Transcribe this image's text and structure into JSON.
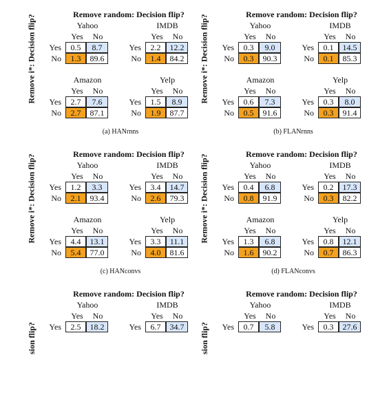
{
  "colors": {
    "tp_fill": "#ffffff",
    "fn_fill": "#d7e6fa",
    "fp_fill": "#f3a11f",
    "tn_fill": "#ffffff"
  },
  "panels": [
    {
      "ylabel": "Remove i*: Decision flip?",
      "title": "Remove random: Decision flip?",
      "caption": "(a) HANrnns",
      "matrices": [
        {
          "dataset": "Yahoo",
          "col_yes": "Yes",
          "col_no": "No",
          "row_yes": "Yes",
          "row_no": "No",
          "values": [
            "0.5",
            "8.7",
            "1.3",
            "89.6"
          ]
        },
        {
          "dataset": "IMDB",
          "col_yes": "Yes",
          "col_no": "No",
          "row_yes": "Yes",
          "row_no": "No",
          "values": [
            "2.2",
            "12.2",
            "1.4",
            "84.2"
          ]
        },
        {
          "dataset": "Amazon",
          "col_yes": "Yes",
          "col_no": "No",
          "row_yes": "Yes",
          "row_no": "No",
          "values": [
            "2.7",
            "7.6",
            "2.7",
            "87.1"
          ]
        },
        {
          "dataset": "Yelp",
          "col_yes": "Yes",
          "col_no": "No",
          "row_yes": "Yes",
          "row_no": "No",
          "values": [
            "1.5",
            "8.9",
            "1.9",
            "87.7"
          ]
        }
      ]
    },
    {
      "ylabel": "Remove i*: Decision flip?",
      "title": "Remove random: Decision flip?",
      "caption": "(b) FLANrnns",
      "matrices": [
        {
          "dataset": "Yahoo",
          "col_yes": "Yes",
          "col_no": "No",
          "row_yes": "Yes",
          "row_no": "No",
          "values": [
            "0.3",
            "9.0",
            "0.3",
            "90.3"
          ]
        },
        {
          "dataset": "IMDB",
          "col_yes": "Yes",
          "col_no": "No",
          "row_yes": "Yes",
          "row_no": "No",
          "values": [
            "0.1",
            "14.5",
            "0.1",
            "85.3"
          ]
        },
        {
          "dataset": "Amazon",
          "col_yes": "Yes",
          "col_no": "No",
          "row_yes": "Yes",
          "row_no": "No",
          "values": [
            "0.6",
            "7.3",
            "0.5",
            "91.6"
          ]
        },
        {
          "dataset": "Yelp",
          "col_yes": "Yes",
          "col_no": "No",
          "row_yes": "Yes",
          "row_no": "No",
          "values": [
            "0.3",
            "8.0",
            "0.3",
            "91.4"
          ]
        }
      ]
    },
    {
      "ylabel": "Remove i*: Decision flip?",
      "title": "Remove random: Decision flip?",
      "caption": "(c) HANconvs",
      "matrices": [
        {
          "dataset": "Yahoo",
          "col_yes": "Yes",
          "col_no": "No",
          "row_yes": "Yes",
          "row_no": "No",
          "values": [
            "1.2",
            "3.3",
            "2.1",
            "93.4"
          ]
        },
        {
          "dataset": "IMDB",
          "col_yes": "Yes",
          "col_no": "No",
          "row_yes": "Yes",
          "row_no": "No",
          "values": [
            "3.4",
            "14.7",
            "2.6",
            "79.3"
          ]
        },
        {
          "dataset": "Amazon",
          "col_yes": "Yes",
          "col_no": "No",
          "row_yes": "Yes",
          "row_no": "No",
          "values": [
            "4.4",
            "13.1",
            "5.4",
            "77.0"
          ]
        },
        {
          "dataset": "Yelp",
          "col_yes": "Yes",
          "col_no": "No",
          "row_yes": "Yes",
          "row_no": "No",
          "values": [
            "3.3",
            "11.1",
            "4.0",
            "81.6"
          ]
        }
      ]
    },
    {
      "ylabel": "Remove i*: Decision flip?",
      "title": "Remove random: Decision flip?",
      "caption": "(d) FLANconvs",
      "matrices": [
        {
          "dataset": "Yahoo",
          "col_yes": "Yes",
          "col_no": "No",
          "row_yes": "Yes",
          "row_no": "No",
          "values": [
            "0.4",
            "6.8",
            "0.8",
            "91.9"
          ]
        },
        {
          "dataset": "IMDB",
          "col_yes": "Yes",
          "col_no": "No",
          "row_yes": "Yes",
          "row_no": "No",
          "values": [
            "0.2",
            "17.3",
            "0.3",
            "82.2"
          ]
        },
        {
          "dataset": "Amazon",
          "col_yes": "Yes",
          "col_no": "No",
          "row_yes": "Yes",
          "row_no": "No",
          "values": [
            "1.3",
            "6.8",
            "1.6",
            "90.2"
          ]
        },
        {
          "dataset": "Yelp",
          "col_yes": "Yes",
          "col_no": "No",
          "row_yes": "Yes",
          "row_no": "No",
          "values": [
            "0.8",
            "12.1",
            "0.7",
            "86.3"
          ]
        }
      ]
    },
    {
      "ylabel": "sion flip?",
      "title": "Remove random: Decision flip?",
      "matrices": [
        {
          "dataset": "Yahoo",
          "col_yes": "Yes",
          "col_no": "No",
          "row_yes": "Yes",
          "values": [
            "2.5",
            "18.2"
          ]
        },
        {
          "dataset": "IMDB",
          "col_yes": "Yes",
          "col_no": "No",
          "row_yes": "Yes",
          "values": [
            "6.7",
            "34.7"
          ]
        }
      ]
    },
    {
      "ylabel": "sion flip?",
      "title": "Remove random: Decision flip?",
      "matrices": [
        {
          "dataset": "Yahoo",
          "col_yes": "Yes",
          "col_no": "No",
          "row_yes": "Yes",
          "values": [
            "0.7",
            "5.8"
          ]
        },
        {
          "dataset": "IMDB",
          "col_yes": "Yes",
          "col_no": "No",
          "row_yes": "Yes",
          "values": [
            "0.3",
            "27.6"
          ]
        }
      ]
    }
  ]
}
